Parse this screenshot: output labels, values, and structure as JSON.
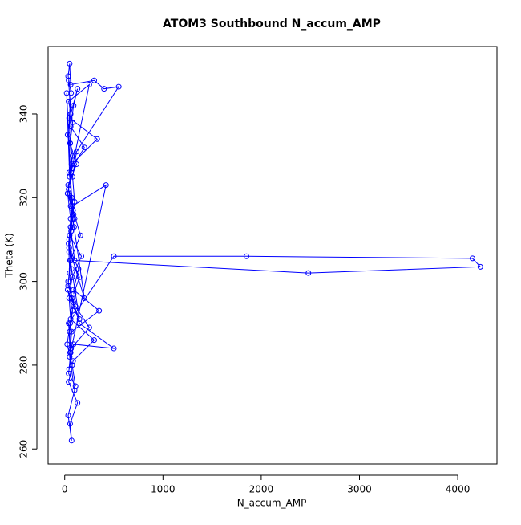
{
  "chart_data": {
    "type": "line",
    "title": "ATOM3 Southbound N_accum_AMP",
    "x_label": "N_accum_AMP",
    "y_label": "Theta (K)",
    "x": [
      40,
      60,
      30,
      80,
      50,
      20,
      70,
      100,
      45,
      65,
      35,
      90,
      55,
      25,
      75,
      110,
      40,
      60,
      50,
      80,
      30,
      150,
      70,
      45,
      200,
      95,
      60,
      35,
      120,
      55,
      80,
      40,
      250,
      65,
      30,
      90,
      50,
      170,
      75,
      45,
      60,
      300,
      85,
      40,
      130,
      55,
      70,
      35,
      100,
      50,
      420,
      80,
      60,
      45,
      140,
      90,
      350,
      70,
      55,
      40,
      500,
      1850,
      4150,
      4230,
      2480,
      100,
      65,
      80,
      45,
      200,
      60,
      90,
      130,
      50,
      330,
      70,
      40,
      85,
      160,
      55,
      35,
      110,
      250,
      65,
      45,
      90,
      500,
      150,
      70,
      50,
      40,
      60,
      30,
      75,
      55,
      45,
      65,
      35,
      50,
      60,
      300,
      400,
      550,
      120,
      80,
      100,
      60,
      45,
      150,
      90
    ],
    "series": [
      {
        "color": "#0000ff",
        "marker": "open-circle",
        "values": [
          348,
          340,
          335,
          330,
          325,
          345,
          320,
          315,
          310,
          305,
          300,
          295,
          290,
          285,
          280,
          275,
          278,
          283,
          288,
          293,
          298,
          291,
          303,
          308,
          296,
          313,
          318,
          323,
          328,
          333,
          338,
          343,
          347,
          326,
          321,
          316,
          311,
          306,
          301,
          296,
          291,
          286,
          281,
          276,
          271,
          266,
          262,
          268,
          274,
          282,
          323,
          318,
          313,
          308,
          303,
          298,
          293,
          288,
          283,
          290,
          306,
          306,
          305.5,
          303.5,
          302,
          305,
          312,
          319,
          326,
          332,
          337,
          342,
          346,
          339,
          334,
          328,
          322,
          317,
          311,
          305,
          299,
          294,
          289,
          284,
          279,
          285,
          284,
          290,
          296,
          302,
          309,
          315,
          321,
          327,
          333,
          339,
          345,
          349,
          352,
          347,
          348,
          346,
          346.5,
          331,
          325,
          319,
          313,
          307,
          301,
          297
        ]
      }
    ],
    "xlim": [
      -169,
      4399
    ],
    "xticks": [
      0,
      1000,
      2000,
      3000,
      4000
    ],
    "ylim": [
      256.4,
      356.1
    ],
    "yticks": [
      260,
      280,
      300,
      320,
      340
    ],
    "grid": false
  }
}
